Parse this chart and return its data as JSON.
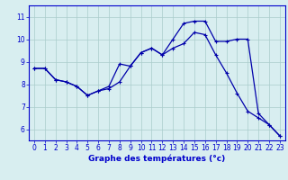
{
  "xlabel": "Graphe des températures (°c)",
  "line1_x": [
    0,
    1,
    2,
    3,
    4,
    5,
    6,
    7,
    8,
    9,
    10,
    11,
    12,
    13,
    14,
    15,
    16,
    17,
    18,
    19,
    20,
    21,
    22,
    23
  ],
  "line1_y": [
    8.7,
    8.7,
    8.2,
    8.1,
    7.9,
    7.5,
    7.7,
    7.9,
    8.9,
    8.8,
    9.4,
    9.6,
    9.3,
    10.0,
    10.7,
    10.8,
    10.8,
    9.9,
    9.9,
    10.0,
    10.0,
    6.7,
    6.2,
    5.7
  ],
  "line2_x": [
    0,
    1,
    2,
    3,
    4,
    5,
    6,
    7,
    8,
    9,
    10,
    11,
    12,
    13,
    14,
    15,
    16,
    17,
    18,
    19,
    20,
    21,
    22,
    23
  ],
  "line2_y": [
    8.7,
    8.7,
    8.2,
    8.1,
    7.9,
    7.5,
    7.7,
    7.8,
    8.1,
    8.8,
    9.4,
    9.6,
    9.3,
    9.6,
    9.8,
    10.3,
    10.2,
    9.3,
    8.5,
    7.6,
    6.8,
    6.5,
    6.2,
    5.7
  ],
  "line_color": "#0000aa",
  "marker": "+",
  "markersize": 3,
  "linewidth": 0.9,
  "xlim": [
    -0.5,
    23.5
  ],
  "ylim": [
    5.5,
    11.5
  ],
  "yticks": [
    6,
    7,
    8,
    9,
    10,
    11
  ],
  "xticks": [
    0,
    1,
    2,
    3,
    4,
    5,
    6,
    7,
    8,
    9,
    10,
    11,
    12,
    13,
    14,
    15,
    16,
    17,
    18,
    19,
    20,
    21,
    22,
    23
  ],
  "bg_color": "#d8eef0",
  "grid_color": "#aacccc",
  "label_color": "#0000cc",
  "tick_fontsize": 5.5,
  "xlabel_fontsize": 6.5
}
